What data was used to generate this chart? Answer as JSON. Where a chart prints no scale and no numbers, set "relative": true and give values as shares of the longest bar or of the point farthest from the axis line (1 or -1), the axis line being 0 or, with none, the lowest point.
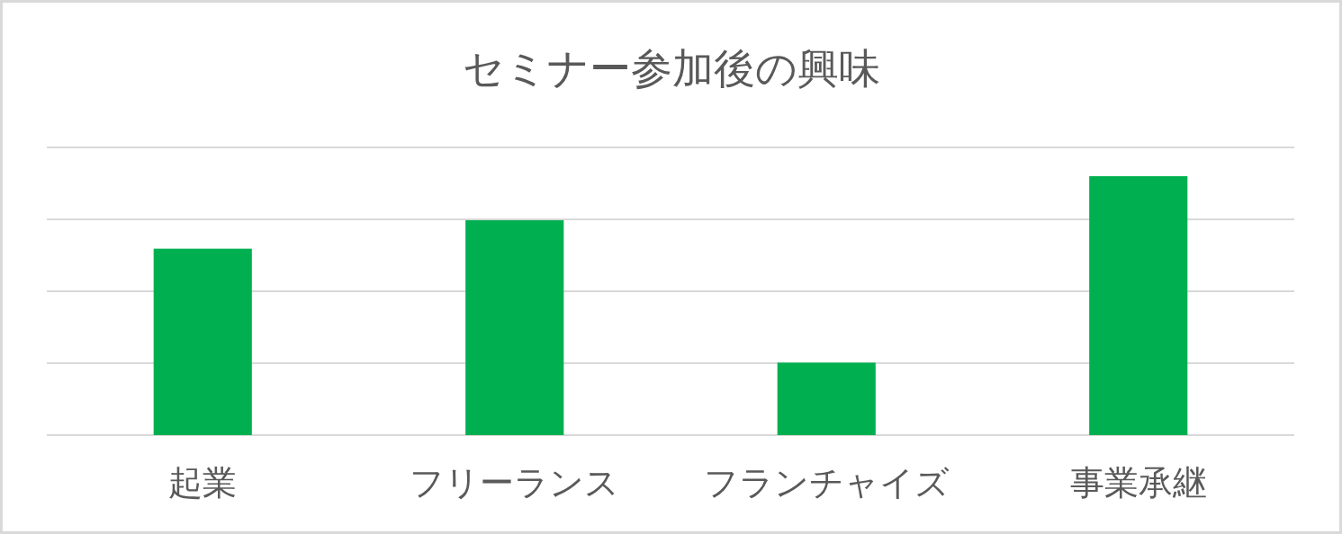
{
  "chart_data": {
    "type": "bar",
    "title": "セミナー参加後の興味",
    "categories": [
      "起業",
      "フリーランス",
      "フランチャイズ",
      "事業承継"
    ],
    "values": [
      0.72,
      0.83,
      0.28,
      1
    ],
    "color": "#00b050",
    "relative": true,
    "grid": "y"
  }
}
